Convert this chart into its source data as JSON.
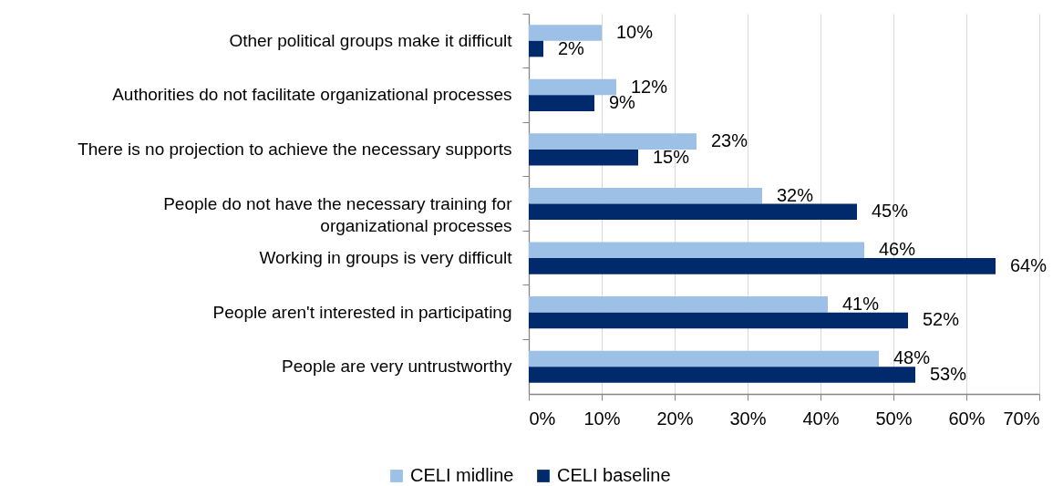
{
  "chart_data": {
    "type": "bar",
    "orientation": "horizontal",
    "categories": [
      "Other political groups make it difficult",
      "Authorities do not facilitate organizational processes",
      "There is no projection to achieve the necessary supports",
      "People do not have the necessary training for organizational processes",
      "Working in groups is very difficult",
      "People aren't interested in participating",
      "People are very untrustworthy"
    ],
    "series": [
      {
        "name": "CELI midline",
        "color": "#9dc0e6",
        "values": [
          10,
          12,
          23,
          32,
          46,
          41,
          48
        ],
        "value_labels": [
          "10%",
          "12%",
          "23%",
          "32%",
          "46%",
          "41%",
          "48%"
        ]
      },
      {
        "name": "CELI baseline",
        "color": "#002a6b",
        "values": [
          2,
          9,
          15,
          45,
          64,
          52,
          53
        ],
        "value_labels": [
          "2%",
          "9%",
          "15%",
          "45%",
          "64%",
          "52%",
          "53%"
        ]
      }
    ],
    "xlim": [
      0,
      70
    ],
    "xticks": [
      {
        "value": 0,
        "label": "0%"
      },
      {
        "value": 10,
        "label": "10%"
      },
      {
        "value": 20,
        "label": "20%"
      },
      {
        "value": 30,
        "label": "30%"
      },
      {
        "value": 40,
        "label": "40%"
      },
      {
        "value": 50,
        "label": "50%"
      },
      {
        "value": 60,
        "label": "60%"
      },
      {
        "value": 70,
        "label": "70%"
      }
    ],
    "grid": "x",
    "legend": "bottom"
  }
}
